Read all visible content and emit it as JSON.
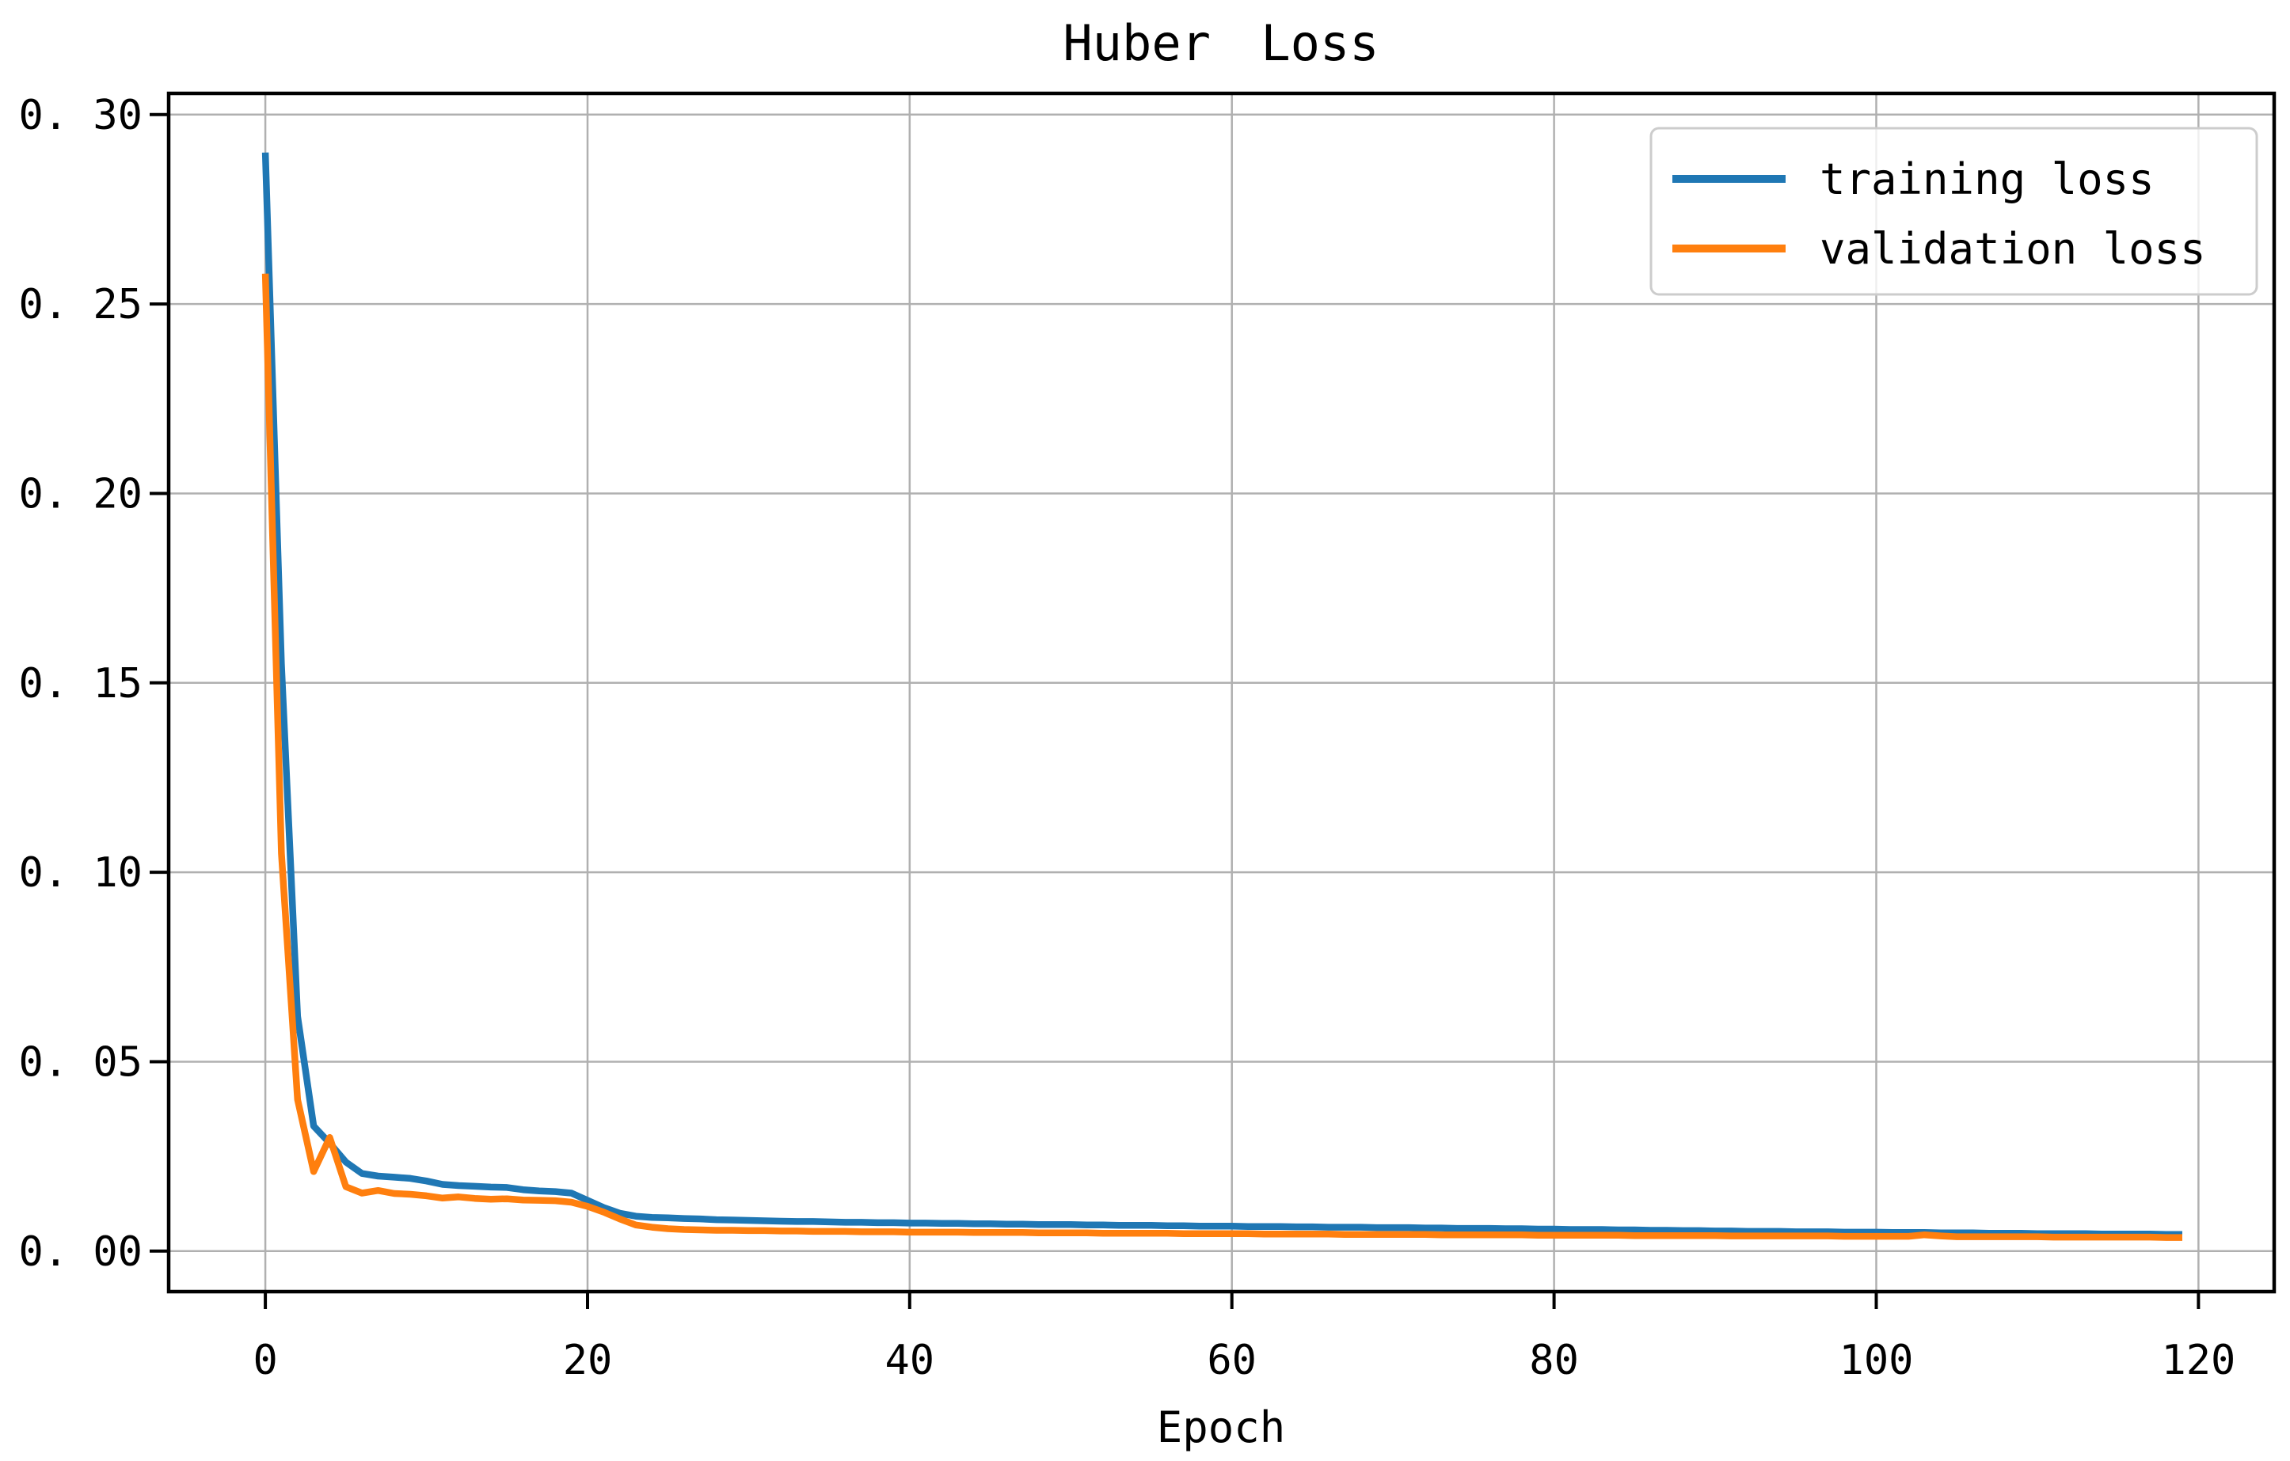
{
  "figure": {
    "background": "#ffffff"
  },
  "chart_data": {
    "type": "line",
    "title": "Huber Loss",
    "xlabel": "Epoch",
    "ylabel": "",
    "x_range": [
      0,
      119
    ],
    "xlim": [
      -6.0,
      124.7
    ],
    "ylim": [
      -0.0107,
      0.3056
    ],
    "grid": {
      "visible": true,
      "color": "#b0b0b0"
    },
    "axes_color": "#000000",
    "xticks": {
      "values": [
        0,
        20,
        40,
        60,
        80,
        100,
        120
      ],
      "labels": [
        "0",
        "20",
        "40",
        "60",
        "80",
        "100",
        "120"
      ]
    },
    "yticks": {
      "values": [
        0.0,
        0.05,
        0.1,
        0.15,
        0.2,
        0.25,
        0.3
      ],
      "labels": [
        "0. 00",
        "0. 05",
        "0. 10",
        "0. 15",
        "0. 20",
        "0. 25",
        "0. 30"
      ]
    },
    "legend": {
      "position": "upper right",
      "entries": [
        "training loss",
        "validation loss"
      ]
    },
    "series": [
      {
        "name": "training loss",
        "color": "#1f77b4",
        "values": [
          0.29,
          0.155,
          0.062,
          0.033,
          0.0285,
          0.0235,
          0.0205,
          0.0198,
          0.0195,
          0.0192,
          0.0185,
          0.0176,
          0.0173,
          0.0171,
          0.0169,
          0.0168,
          0.0162,
          0.0159,
          0.0157,
          0.0153,
          0.0134,
          0.0115,
          0.01,
          0.0092,
          0.0089,
          0.0088,
          0.0086,
          0.0085,
          0.0083,
          0.0082,
          0.0081,
          0.008,
          0.0079,
          0.0078,
          0.0078,
          0.0077,
          0.0076,
          0.0076,
          0.0075,
          0.0075,
          0.0074,
          0.0074,
          0.0073,
          0.0073,
          0.0072,
          0.0072,
          0.0071,
          0.0071,
          0.007,
          0.007,
          0.007,
          0.0069,
          0.0069,
          0.0068,
          0.0068,
          0.0068,
          0.0067,
          0.0067,
          0.0066,
          0.0066,
          0.0066,
          0.0065,
          0.0065,
          0.0065,
          0.0064,
          0.0064,
          0.0063,
          0.0063,
          0.0063,
          0.0062,
          0.0062,
          0.0062,
          0.0061,
          0.0061,
          0.006,
          0.006,
          0.006,
          0.0059,
          0.0059,
          0.0058,
          0.0058,
          0.0057,
          0.0057,
          0.0057,
          0.0056,
          0.0056,
          0.0055,
          0.0055,
          0.0054,
          0.0054,
          0.0053,
          0.0053,
          0.0052,
          0.0052,
          0.0052,
          0.0051,
          0.0051,
          0.0051,
          0.005,
          0.005,
          0.005,
          0.0049,
          0.0049,
          0.0049,
          0.0048,
          0.0048,
          0.0048,
          0.0047,
          0.0047,
          0.0047,
          0.0046,
          0.0046,
          0.0046,
          0.0046,
          0.0045,
          0.0045,
          0.0045,
          0.0045,
          0.0044,
          0.0044
        ]
      },
      {
        "name": "validation loss",
        "color": "#ff7f0e",
        "values": [
          0.258,
          0.105,
          0.04,
          0.021,
          0.03,
          0.017,
          0.0153,
          0.016,
          0.0152,
          0.015,
          0.0146,
          0.014,
          0.0143,
          0.0139,
          0.0137,
          0.0138,
          0.0135,
          0.0134,
          0.0133,
          0.0129,
          0.0118,
          0.0103,
          0.0085,
          0.0069,
          0.0063,
          0.0059,
          0.0057,
          0.0056,
          0.0055,
          0.0055,
          0.0054,
          0.0054,
          0.0053,
          0.0053,
          0.0052,
          0.0052,
          0.0052,
          0.0051,
          0.0051,
          0.0051,
          0.005,
          0.005,
          0.005,
          0.005,
          0.0049,
          0.0049,
          0.0049,
          0.0049,
          0.0048,
          0.0048,
          0.0048,
          0.0048,
          0.0047,
          0.0047,
          0.0047,
          0.0047,
          0.0047,
          0.0046,
          0.0046,
          0.0046,
          0.0046,
          0.0046,
          0.0045,
          0.0045,
          0.0045,
          0.0045,
          0.0045,
          0.0044,
          0.0044,
          0.0044,
          0.0044,
          0.0044,
          0.0044,
          0.0043,
          0.0043,
          0.0043,
          0.0043,
          0.0043,
          0.0043,
          0.0042,
          0.0042,
          0.0042,
          0.0042,
          0.0042,
          0.0042,
          0.0041,
          0.0041,
          0.0041,
          0.0041,
          0.0041,
          0.0041,
          0.004,
          0.004,
          0.004,
          0.004,
          0.004,
          0.004,
          0.004,
          0.0039,
          0.0039,
          0.0039,
          0.0039,
          0.0039,
          0.0043,
          0.004,
          0.0038,
          0.0038,
          0.0038,
          0.0038,
          0.0038,
          0.0038,
          0.0037,
          0.0037,
          0.0037,
          0.0037,
          0.0037,
          0.0037,
          0.0037,
          0.0036,
          0.0036
        ]
      }
    ]
  }
}
